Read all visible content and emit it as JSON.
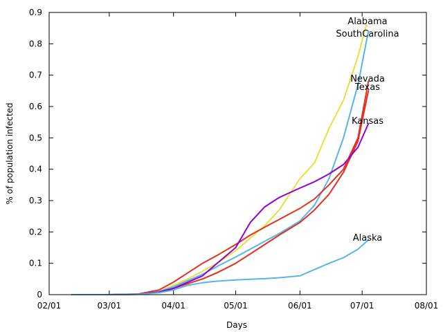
{
  "chart_data": {
    "type": "line",
    "xlabel": "Days",
    "ylabel": "% of population infected",
    "xlim": [
      "02/01",
      "08/01"
    ],
    "ylim": [
      0,
      0.9
    ],
    "x_ticks": [
      "02/01",
      "03/01",
      "04/01",
      "05/01",
      "06/01",
      "07/01",
      "08/01"
    ],
    "y_ticks": [
      "0",
      "0.1",
      "0.2",
      "0.3",
      "0.4",
      "0.5",
      "0.6",
      "0.7",
      "0.8",
      "0.9"
    ],
    "grid": false,
    "legend": "none",
    "series": [
      {
        "name": "Alabama",
        "color": "#e6e040",
        "x": [
          "02/12",
          "03/01",
          "03/15",
          "03/25",
          "04/01",
          "04/08",
          "04/15",
          "04/22",
          "05/01",
          "05/08",
          "05/15",
          "05/22",
          "06/01",
          "06/08",
          "06/15",
          "06/22",
          "06/29",
          "07/03"
        ],
        "y": [
          0,
          0,
          0.002,
          0.01,
          0.03,
          0.05,
          0.075,
          0.1,
          0.14,
          0.18,
          0.22,
          0.27,
          0.37,
          0.42,
          0.53,
          0.62,
          0.76,
          0.86
        ]
      },
      {
        "name": "SouthCarolina",
        "color": "#56b4e9",
        "x": [
          "02/12",
          "03/01",
          "03/15",
          "03/25",
          "04/01",
          "04/08",
          "04/15",
          "04/22",
          "05/01",
          "05/08",
          "05/15",
          "05/22",
          "06/01",
          "06/08",
          "06/15",
          "06/22",
          "06/29",
          "07/04"
        ],
        "y": [
          0,
          0,
          0.002,
          0.01,
          0.025,
          0.045,
          0.065,
          0.09,
          0.12,
          0.145,
          0.17,
          0.195,
          0.235,
          0.285,
          0.37,
          0.5,
          0.67,
          0.84
        ]
      },
      {
        "name": "Nevada",
        "color": "#e32f1f",
        "x": [
          "02/12",
          "03/01",
          "03/15",
          "03/25",
          "04/01",
          "04/08",
          "04/15",
          "04/22",
          "05/01",
          "05/08",
          "05/15",
          "05/22",
          "06/01",
          "06/08",
          "06/15",
          "06/22",
          "06/29",
          "07/04"
        ],
        "y": [
          0,
          0,
          0.002,
          0.015,
          0.04,
          0.07,
          0.1,
          0.125,
          0.16,
          0.19,
          0.215,
          0.24,
          0.275,
          0.305,
          0.35,
          0.4,
          0.5,
          0.68
        ]
      },
      {
        "name": "Texas",
        "color": "#e32f1f",
        "x": [
          "02/12",
          "03/01",
          "03/15",
          "03/25",
          "04/01",
          "04/08",
          "04/15",
          "04/22",
          "05/01",
          "05/08",
          "05/15",
          "05/22",
          "06/01",
          "06/08",
          "06/15",
          "06/22",
          "06/29",
          "07/04"
        ],
        "y": [
          0,
          0,
          0.001,
          0.008,
          0.02,
          0.035,
          0.05,
          0.07,
          0.1,
          0.13,
          0.16,
          0.19,
          0.23,
          0.27,
          0.32,
          0.39,
          0.49,
          0.65
        ]
      },
      {
        "name": "Kansas",
        "color": "#9400d3",
        "x": [
          "02/12",
          "03/01",
          "03/15",
          "03/25",
          "04/01",
          "04/08",
          "04/15",
          "04/22",
          "05/01",
          "05/08",
          "05/15",
          "05/22",
          "06/01",
          "06/08",
          "06/15",
          "06/22",
          "06/29",
          "07/04"
        ],
        "y": [
          0,
          0,
          0.001,
          0.008,
          0.02,
          0.04,
          0.06,
          0.1,
          0.15,
          0.23,
          0.28,
          0.31,
          0.34,
          0.36,
          0.385,
          0.415,
          0.47,
          0.545
        ]
      },
      {
        "name": "Alaska",
        "color": "#56b4e9",
        "x": [
          "02/12",
          "03/01",
          "03/15",
          "03/25",
          "04/01",
          "04/08",
          "04/15",
          "04/22",
          "05/01",
          "05/08",
          "05/15",
          "05/22",
          "06/01",
          "06/08",
          "06/15",
          "06/22",
          "06/29",
          "07/04"
        ],
        "y": [
          0,
          0,
          0.001,
          0.006,
          0.015,
          0.03,
          0.038,
          0.043,
          0.047,
          0.049,
          0.051,
          0.054,
          0.06,
          0.08,
          0.1,
          0.118,
          0.145,
          0.175
        ]
      }
    ],
    "annotations": [
      "Alabama",
      "SouthCarolina",
      "Nevada",
      "Texas",
      "Kansas",
      "Alaska"
    ]
  }
}
